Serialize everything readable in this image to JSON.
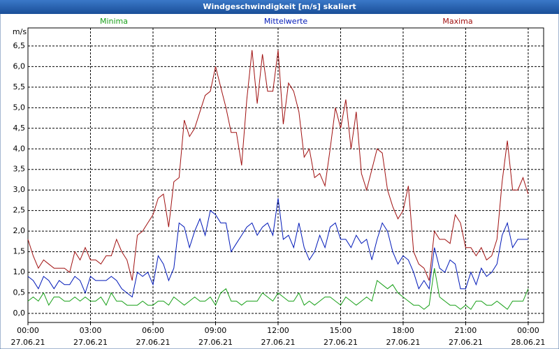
{
  "chart_data": {
    "type": "line",
    "title": "Windgeschwindigkeit [m/s] skaliert",
    "ylabel": "m/s",
    "legend": "top",
    "grid": true,
    "x": [
      0,
      0.25,
      0.5,
      0.75,
      1,
      1.25,
      1.5,
      1.75,
      2,
      2.25,
      2.5,
      2.75,
      3,
      3.25,
      3.5,
      3.75,
      4,
      4.25,
      4.5,
      4.75,
      5,
      5.25,
      5.5,
      5.75,
      6,
      6.25,
      6.5,
      6.75,
      7,
      7.25,
      7.5,
      7.75,
      8,
      8.25,
      8.5,
      8.75,
      9,
      9.25,
      9.5,
      9.75,
      10,
      10.25,
      10.5,
      10.75,
      11,
      11.25,
      11.5,
      11.75,
      12,
      12.25,
      12.5,
      12.75,
      13,
      13.25,
      13.5,
      13.75,
      14,
      14.25,
      14.5,
      14.75,
      15,
      15.25,
      15.5,
      15.75,
      16,
      16.25,
      16.5,
      16.75,
      17,
      17.25,
      17.5,
      17.75,
      18,
      18.25,
      18.5,
      18.75,
      19,
      19.25,
      19.5,
      19.75,
      20,
      20.25,
      20.5,
      20.75,
      21,
      21.25,
      21.5,
      21.75,
      22,
      22.25,
      22.5,
      22.75,
      23,
      23.25,
      23.5,
      23.75,
      24
    ],
    "xlim": [
      0,
      24.74
    ],
    "xticks": [
      {
        "value": 0,
        "label": "00:00",
        "sublabel": "27.06.21"
      },
      {
        "value": 3,
        "label": "03:00",
        "sublabel": "27.06.21"
      },
      {
        "value": 6,
        "label": "06:00",
        "sublabel": "27.06.21"
      },
      {
        "value": 9,
        "label": "09:00",
        "sublabel": "27.06.21"
      },
      {
        "value": 12,
        "label": "12:00",
        "sublabel": "27.06.21"
      },
      {
        "value": 15,
        "label": "15:00",
        "sublabel": "27.06.21"
      },
      {
        "value": 18,
        "label": "18:00",
        "sublabel": "27.06.21"
      },
      {
        "value": 21,
        "label": "21:00",
        "sublabel": "27.06.21"
      },
      {
        "value": 24,
        "label": "00:00",
        "sublabel": "28.06.21"
      }
    ],
    "ylim": [
      -0.22,
      6.94
    ],
    "yticks": [
      {
        "value": 0,
        "label": "0,0"
      },
      {
        "value": 0.5,
        "label": "0,5"
      },
      {
        "value": 1,
        "label": "1,0"
      },
      {
        "value": 1.5,
        "label": "1,5"
      },
      {
        "value": 2,
        "label": "2,0"
      },
      {
        "value": 2.5,
        "label": "2,5"
      },
      {
        "value": 3,
        "label": "3,0"
      },
      {
        "value": 3.5,
        "label": "3,5"
      },
      {
        "value": 4,
        "label": "4,0"
      },
      {
        "value": 4.5,
        "label": "4,5"
      },
      {
        "value": 5,
        "label": "5,0"
      },
      {
        "value": 5.5,
        "label": "5,5"
      },
      {
        "value": 6,
        "label": "6,0"
      },
      {
        "value": 6.5,
        "label": "6,5"
      }
    ],
    "series": [
      {
        "name": "Minima",
        "color": "#19a019",
        "values": [
          0.3,
          0.4,
          0.3,
          0.5,
          0.2,
          0.4,
          0.4,
          0.3,
          0.3,
          0.4,
          0.3,
          0.4,
          0.3,
          0.3,
          0.4,
          0.2,
          0.5,
          0.3,
          0.3,
          0.2,
          0.2,
          0.2,
          0.3,
          0.2,
          0.2,
          0.3,
          0.3,
          0.2,
          0.4,
          0.3,
          0.2,
          0.3,
          0.4,
          0.3,
          0.3,
          0.4,
          0.2,
          0.5,
          0.6,
          0.3,
          0.3,
          0.2,
          0.3,
          0.3,
          0.3,
          0.5,
          0.4,
          0.3,
          0.5,
          0.4,
          0.3,
          0.3,
          0.5,
          0.2,
          0.3,
          0.2,
          0.3,
          0.4,
          0.4,
          0.3,
          0.2,
          0.4,
          0.3,
          0.2,
          0.3,
          0.4,
          0.3,
          0.8,
          0.7,
          0.6,
          0.7,
          0.5,
          0.4,
          0.3,
          0.2,
          0.2,
          0.1,
          0.2,
          1.1,
          0.4,
          0.3,
          0.2,
          0.2,
          0.1,
          0.2,
          0.1,
          0.3,
          0.3,
          0.2,
          0.2,
          0.3,
          0.2,
          0.1,
          0.3,
          0.3,
          0.3,
          0.6
        ]
      },
      {
        "name": "Mittelwerte",
        "color": "#0018b8",
        "values": [
          0.9,
          0.8,
          0.6,
          0.9,
          0.8,
          0.6,
          0.8,
          0.7,
          0.7,
          0.9,
          0.8,
          0.5,
          0.9,
          0.8,
          0.8,
          0.8,
          0.9,
          0.8,
          0.6,
          0.5,
          0.4,
          1.0,
          0.9,
          1.0,
          0.7,
          1.4,
          1.2,
          0.8,
          1.1,
          2.2,
          2.1,
          1.6,
          2.0,
          2.3,
          1.9,
          2.5,
          2.4,
          2.2,
          2.2,
          1.5,
          1.7,
          1.9,
          2.1,
          2.2,
          1.9,
          2.1,
          2.2,
          1.9,
          2.8,
          1.8,
          1.9,
          1.6,
          2.2,
          1.6,
          1.3,
          1.5,
          1.9,
          1.6,
          2.1,
          2.2,
          1.8,
          1.8,
          1.6,
          1.9,
          1.7,
          1.8,
          1.3,
          1.8,
          2.2,
          2.0,
          1.5,
          1.2,
          1.4,
          1.3,
          1.0,
          0.6,
          0.8,
          0.6,
          1.6,
          1.1,
          1.0,
          1.3,
          1.2,
          0.6,
          0.6,
          1.0,
          0.7,
          1.1,
          0.9,
          1.0,
          1.2,
          1.9,
          2.2,
          1.6,
          1.8,
          1.8,
          1.8
        ]
      },
      {
        "name": "Maxima",
        "color": "#a01010",
        "values": [
          1.8,
          1.4,
          1.1,
          1.3,
          1.2,
          1.1,
          1.1,
          1.1,
          1.0,
          1.5,
          1.3,
          1.6,
          1.3,
          1.3,
          1.2,
          1.4,
          1.4,
          1.8,
          1.5,
          1.3,
          0.8,
          1.9,
          2.0,
          2.2,
          2.4,
          2.8,
          2.9,
          2.1,
          3.2,
          3.3,
          4.7,
          4.3,
          4.5,
          4.9,
          5.3,
          5.4,
          6.0,
          5.5,
          5.0,
          4.4,
          4.4,
          3.6,
          5.2,
          6.4,
          5.1,
          6.3,
          5.4,
          5.4,
          6.4,
          4.6,
          5.6,
          5.4,
          4.9,
          3.8,
          4.0,
          3.3,
          3.4,
          3.1,
          4.0,
          5.0,
          4.5,
          5.2,
          4.0,
          4.9,
          3.4,
          3.0,
          3.5,
          4.0,
          3.9,
          3.0,
          2.6,
          2.3,
          2.5,
          3.1,
          1.5,
          1.2,
          1.1,
          0.8,
          2.0,
          1.8,
          1.8,
          1.7,
          2.4,
          2.2,
          1.6,
          1.6,
          1.4,
          1.6,
          1.3,
          1.4,
          1.8,
          3.2,
          4.2,
          3.0,
          3.0,
          3.3,
          2.9
        ]
      }
    ]
  }
}
